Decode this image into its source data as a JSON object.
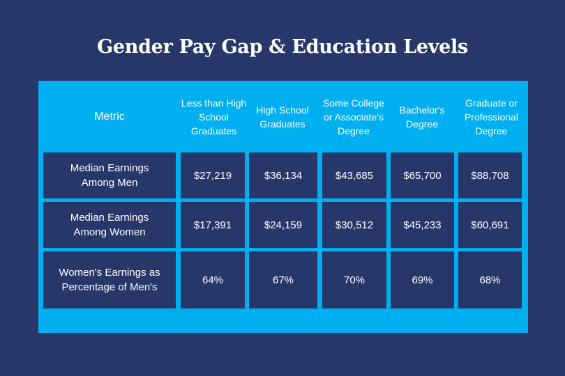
{
  "title": "Gender Pay Gap & Education Levels",
  "colors": {
    "background": "#27376a",
    "panel": "#00aff0",
    "cell": "#27376a",
    "text": "#ffffff"
  },
  "table": {
    "headers": [
      "Metric",
      "Less than High School Graduates",
      "High School Graduates",
      "Some College or Associate's Degree",
      "Bachelor's Degree",
      "Graduate or Professional Degree"
    ],
    "rows": [
      {
        "label": "Median Earnings Among Men",
        "values": [
          "$27,219",
          "$36,134",
          "$43,685",
          "$65,700",
          "$88,708"
        ]
      },
      {
        "label": "Median Earnings Among Women",
        "values": [
          "$17,391",
          "$24,159",
          "$30,512",
          "$45,233",
          "$60,691"
        ]
      },
      {
        "label": "Women's Earnings as Percentage of Men's",
        "values": [
          "64%",
          "67%",
          "70%",
          "69%",
          "68%"
        ]
      }
    ]
  }
}
